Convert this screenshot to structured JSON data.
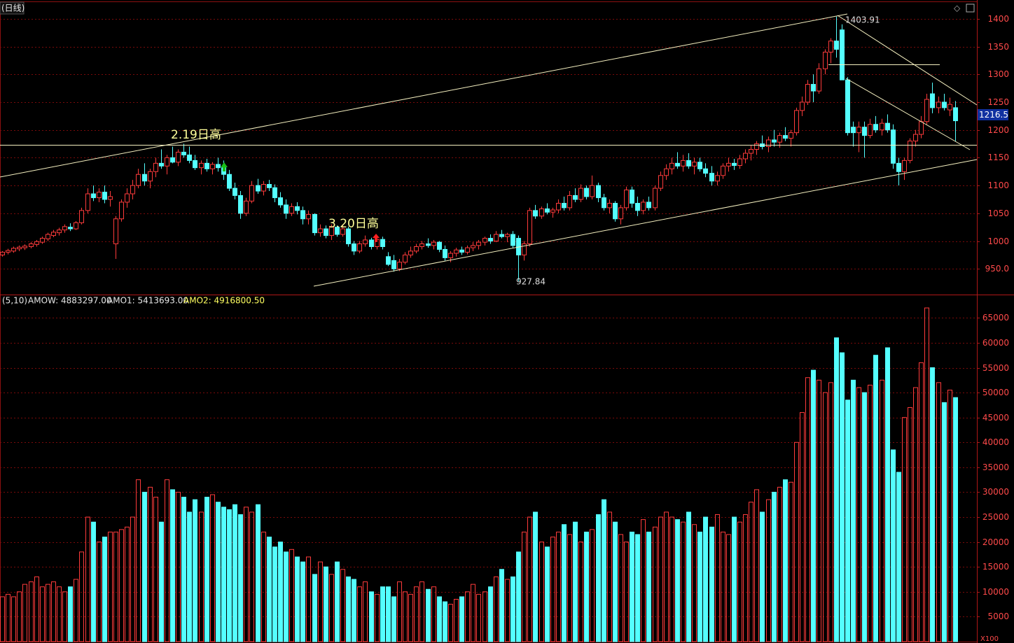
{
  "chart_data": {
    "type": "candlestick",
    "period_label": "(日线)",
    "indicator_labels": [
      "(5,10)",
      "AMOW: 4883297.00",
      "AMO1: 5413693.00",
      "AMO2: 4916800.50"
    ],
    "annotations": [
      "2.19日高",
      "3.20日高"
    ],
    "volume_unit": "X100",
    "up_color": "#ff3b3b",
    "down_color": "#54ffff",
    "grid": true,
    "ylim": [
      905,
      1430
    ],
    "yticks": [
      {
        "value": 950,
        "label": "950.0"
      },
      1000,
      1050,
      1100,
      1150,
      1200,
      1250,
      1300,
      1350,
      1400
    ],
    "volume_ylim": [
      0,
      69400
    ],
    "volume_yticks": [
      5000,
      10000,
      15000,
      20000,
      25000,
      30000,
      35000,
      40000,
      45000,
      50000,
      55000,
      60000,
      65000
    ],
    "candles": [
      [
        975,
        982,
        972,
        980
      ],
      [
        980,
        986,
        976,
        983
      ],
      [
        982,
        990,
        979,
        987
      ],
      [
        986,
        992,
        982,
        989
      ],
      [
        988,
        994,
        984,
        991
      ],
      [
        990,
        998,
        987,
        995
      ],
      [
        994,
        1002,
        990,
        999
      ],
      [
        998,
        1008,
        995,
        1005
      ],
      [
        1004,
        1015,
        1000,
        1012
      ],
      [
        1010,
        1020,
        1007,
        1016
      ],
      [
        1015,
        1024,
        1010,
        1020
      ],
      [
        1020,
        1030,
        1015,
        1026
      ],
      [
        1025,
        1032,
        1018,
        1022
      ],
      [
        1022,
        1036,
        1020,
        1033
      ],
      [
        1033,
        1060,
        1030,
        1055
      ],
      [
        1055,
        1095,
        1050,
        1085
      ],
      [
        1085,
        1100,
        1072,
        1078
      ],
      [
        1078,
        1095,
        1070,
        1088
      ],
      [
        1088,
        1100,
        1068,
        1075
      ],
      [
        1075,
        1090,
        1062,
        1080
      ],
      [
        995,
        1045,
        968,
        1040
      ],
      [
        1040,
        1075,
        1035,
        1070
      ],
      [
        1070,
        1095,
        1060,
        1085
      ],
      [
        1085,
        1110,
        1075,
        1100
      ],
      [
        1100,
        1130,
        1095,
        1120
      ],
      [
        1120,
        1140,
        1100,
        1108
      ],
      [
        1108,
        1130,
        1095,
        1125
      ],
      [
        1125,
        1150,
        1115,
        1140
      ],
      [
        1140,
        1165,
        1130,
        1135
      ],
      [
        1135,
        1155,
        1120,
        1150
      ],
      [
        1150,
        1170,
        1140,
        1142
      ],
      [
        1142,
        1165,
        1135,
        1160
      ],
      [
        1160,
        1175,
        1150,
        1155
      ],
      [
        1155,
        1170,
        1140,
        1145
      ],
      [
        1145,
        1155,
        1128,
        1132
      ],
      [
        1132,
        1145,
        1120,
        1140
      ],
      [
        1140,
        1148,
        1125,
        1130
      ],
      [
        1130,
        1142,
        1120,
        1138
      ],
      [
        1138,
        1150,
        1125,
        1132
      ],
      [
        1132,
        1145,
        1110,
        1120
      ],
      [
        1120,
        1128,
        1090,
        1095
      ],
      [
        1095,
        1105,
        1075,
        1082
      ],
      [
        1082,
        1090,
        1040,
        1050
      ],
      [
        1050,
        1078,
        1045,
        1072
      ],
      [
        1072,
        1108,
        1068,
        1100
      ],
      [
        1100,
        1112,
        1085,
        1090
      ],
      [
        1090,
        1108,
        1082,
        1102
      ],
      [
        1102,
        1110,
        1090,
        1096
      ],
      [
        1096,
        1102,
        1070,
        1078
      ],
      [
        1078,
        1088,
        1060,
        1065
      ],
      [
        1065,
        1075,
        1040,
        1050
      ],
      [
        1050,
        1068,
        1045,
        1062
      ],
      [
        1062,
        1070,
        1048,
        1055
      ],
      [
        1055,
        1062,
        1030,
        1040
      ],
      [
        1040,
        1055,
        1030,
        1048
      ],
      [
        1048,
        1050,
        1010,
        1015
      ],
      [
        1015,
        1030,
        1008,
        1022
      ],
      [
        1022,
        1028,
        1005,
        1010
      ],
      [
        1010,
        1030,
        1002,
        1025
      ],
      [
        1025,
        1028,
        1008,
        1012
      ],
      [
        1012,
        1030,
        1008,
        1022
      ],
      [
        1022,
        1026,
        990,
        995
      ],
      [
        995,
        1000,
        975,
        982
      ],
      [
        982,
        1000,
        978,
        995
      ],
      [
        995,
        1010,
        990,
        1002
      ],
      [
        1002,
        1006,
        985,
        990
      ],
      [
        990,
        1008,
        985,
        1003
      ],
      [
        1003,
        1008,
        985,
        990
      ],
      [
        972,
        980,
        955,
        958
      ],
      [
        965,
        975,
        945,
        950
      ],
      [
        950,
        968,
        946,
        962
      ],
      [
        962,
        980,
        958,
        975
      ],
      [
        975,
        990,
        970,
        982
      ],
      [
        982,
        995,
        978,
        990
      ],
      [
        990,
        1000,
        985,
        995
      ],
      [
        995,
        1005,
        988,
        992
      ],
      [
        992,
        1002,
        985,
        998
      ],
      [
        998,
        1000,
        980,
        985
      ],
      [
        985,
        992,
        965,
        970
      ],
      [
        970,
        982,
        962,
        978
      ],
      [
        978,
        988,
        972,
        984
      ],
      [
        984,
        990,
        975,
        980
      ],
      [
        980,
        992,
        976,
        988
      ],
      [
        988,
        998,
        982,
        992
      ],
      [
        992,
        1002,
        985,
        998
      ],
      [
        998,
        1008,
        992,
        1005
      ],
      [
        1005,
        1012,
        995,
        1000
      ],
      [
        1000,
        1018,
        998,
        1012
      ],
      [
        1012,
        1020,
        1005,
        1008
      ],
      [
        1008,
        1015,
        998,
        1012
      ],
      [
        1012,
        1018,
        988,
        992
      ],
      [
        1005,
        1010,
        927.84,
        975
      ],
      [
        975,
        1000,
        965,
        995
      ],
      [
        995,
        1060,
        990,
        1055
      ],
      [
        1055,
        1065,
        1040,
        1045
      ],
      [
        1045,
        1062,
        1040,
        1058
      ],
      [
        1058,
        1068,
        1048,
        1052
      ],
      [
        1052,
        1060,
        1042,
        1056
      ],
      [
        1056,
        1075,
        1050,
        1068
      ],
      [
        1068,
        1080,
        1055,
        1060
      ],
      [
        1060,
        1090,
        1055,
        1082
      ],
      [
        1082,
        1095,
        1070,
        1075
      ],
      [
        1075,
        1102,
        1070,
        1095
      ],
      [
        1095,
        1100,
        1075,
        1080
      ],
      [
        1080,
        1118,
        1075,
        1100
      ],
      [
        1100,
        1105,
        1070,
        1078
      ],
      [
        1078,
        1085,
        1055,
        1060
      ],
      [
        1060,
        1075,
        1050,
        1068
      ],
      [
        1068,
        1072,
        1035,
        1040
      ],
      [
        1040,
        1065,
        1030,
        1060
      ],
      [
        1060,
        1098,
        1055,
        1092
      ],
      [
        1092,
        1098,
        1060,
        1068
      ],
      [
        1068,
        1080,
        1045,
        1055
      ],
      [
        1055,
        1075,
        1048,
        1070
      ],
      [
        1070,
        1080,
        1055,
        1060
      ],
      [
        1060,
        1100,
        1055,
        1095
      ],
      [
        1095,
        1125,
        1090,
        1118
      ],
      [
        1118,
        1138,
        1110,
        1130
      ],
      [
        1130,
        1150,
        1120,
        1140
      ],
      [
        1140,
        1160,
        1130,
        1135
      ],
      [
        1135,
        1155,
        1125,
        1145
      ],
      [
        1145,
        1158,
        1130,
        1135
      ],
      [
        1135,
        1150,
        1120,
        1142
      ],
      [
        1142,
        1150,
        1125,
        1130
      ],
      [
        1130,
        1140,
        1115,
        1122
      ],
      [
        1122,
        1135,
        1100,
        1108
      ],
      [
        1108,
        1125,
        1100,
        1118
      ],
      [
        1118,
        1140,
        1112,
        1135
      ],
      [
        1135,
        1150,
        1125,
        1140
      ],
      [
        1140,
        1148,
        1128,
        1136
      ],
      [
        1136,
        1155,
        1130,
        1148
      ],
      [
        1148,
        1165,
        1140,
        1158
      ],
      [
        1158,
        1172,
        1145,
        1165
      ],
      [
        1165,
        1180,
        1155,
        1175
      ],
      [
        1175,
        1190,
        1165,
        1170
      ],
      [
        1170,
        1188,
        1160,
        1182
      ],
      [
        1182,
        1200,
        1170,
        1178
      ],
      [
        1178,
        1195,
        1168,
        1190
      ],
      [
        1190,
        1205,
        1180,
        1185
      ],
      [
        1185,
        1200,
        1170,
        1195
      ],
      [
        1195,
        1240,
        1190,
        1235
      ],
      [
        1235,
        1260,
        1225,
        1250
      ],
      [
        1250,
        1290,
        1245,
        1282
      ],
      [
        1282,
        1300,
        1250,
        1270
      ],
      [
        1270,
        1320,
        1265,
        1310
      ],
      [
        1310,
        1345,
        1300,
        1340
      ],
      [
        1340,
        1365,
        1320,
        1360
      ],
      [
        1360,
        1403.91,
        1330,
        1345
      ],
      [
        1380,
        1390,
        1290,
        1290
      ],
      [
        1290,
        1295,
        1190,
        1195
      ],
      [
        1205,
        1215,
        1170,
        1195
      ],
      [
        1195,
        1215,
        1160,
        1205
      ],
      [
        1205,
        1215,
        1150,
        1190
      ],
      [
        1190,
        1220,
        1185,
        1210
      ],
      [
        1210,
        1225,
        1195,
        1200
      ],
      [
        1200,
        1220,
        1190,
        1212
      ],
      [
        1212,
        1228,
        1195,
        1200
      ],
      [
        1200,
        1210,
        1130,
        1140
      ],
      [
        1140,
        1150,
        1100,
        1125
      ],
      [
        1125,
        1150,
        1110,
        1145
      ],
      [
        1145,
        1185,
        1140,
        1180
      ],
      [
        1180,
        1200,
        1170,
        1192
      ],
      [
        1192,
        1225,
        1185,
        1215
      ],
      [
        1215,
        1265,
        1210,
        1255
      ],
      [
        1265,
        1285,
        1230,
        1240
      ],
      [
        1240,
        1260,
        1230,
        1250
      ],
      [
        1250,
        1265,
        1235,
        1240
      ],
      [
        1236,
        1258,
        1225,
        1246
      ],
      [
        1240,
        1252,
        1180,
        1216.5
      ]
    ],
    "volume": [
      9000,
      9500,
      9000,
      10000,
      11500,
      12000,
      13000,
      11000,
      11500,
      12000,
      11000,
      10000,
      11000,
      12500,
      18000,
      25000,
      24000,
      20000,
      21000,
      22000,
      22000,
      22500,
      23000,
      25000,
      32500,
      30000,
      31000,
      29000,
      24000,
      32500,
      30500,
      30000,
      29000,
      26000,
      28500,
      26000,
      29000,
      29500,
      28000,
      27000,
      26500,
      27500,
      25500,
      27000,
      26000,
      27500,
      22000,
      21000,
      19000,
      20000,
      18000,
      18500,
      17000,
      16000,
      17000,
      13500,
      16000,
      15000,
      13500,
      16000,
      14500,
      13000,
      12500,
      11000,
      12000,
      10000,
      9500,
      11000,
      11000,
      9000,
      12000,
      10000,
      9500,
      11000,
      12000,
      10500,
      11000,
      9000,
      8000,
      7500,
      8500,
      9000,
      10000,
      11500,
      9500,
      10000,
      11000,
      13000,
      14500,
      12500,
      13000,
      18000,
      22000,
      25000,
      26000,
      20000,
      19000,
      21000,
      22000,
      23500,
      21500,
      24000,
      20000,
      22000,
      22500,
      25500,
      28500,
      26000,
      24000,
      21500,
      20000,
      22000,
      21500,
      24500,
      22000,
      23000,
      25000,
      26000,
      25000,
      24500,
      24000,
      26000,
      23500,
      22000,
      25000,
      23000,
      25500,
      22000,
      21500,
      25000,
      24000,
      25500,
      28000,
      30500,
      26000,
      28500,
      30000,
      31000,
      32500,
      32000,
      40000,
      46000,
      53000,
      54500,
      52500,
      50000,
      52000,
      61000,
      58000,
      48500,
      52500,
      51000,
      50000,
      51500,
      57500,
      52500,
      59000,
      38500,
      34000,
      45000,
      47000,
      51000,
      56000,
      67000,
      55000,
      52000,
      48000,
      50500,
      49000
    ]
  }
}
